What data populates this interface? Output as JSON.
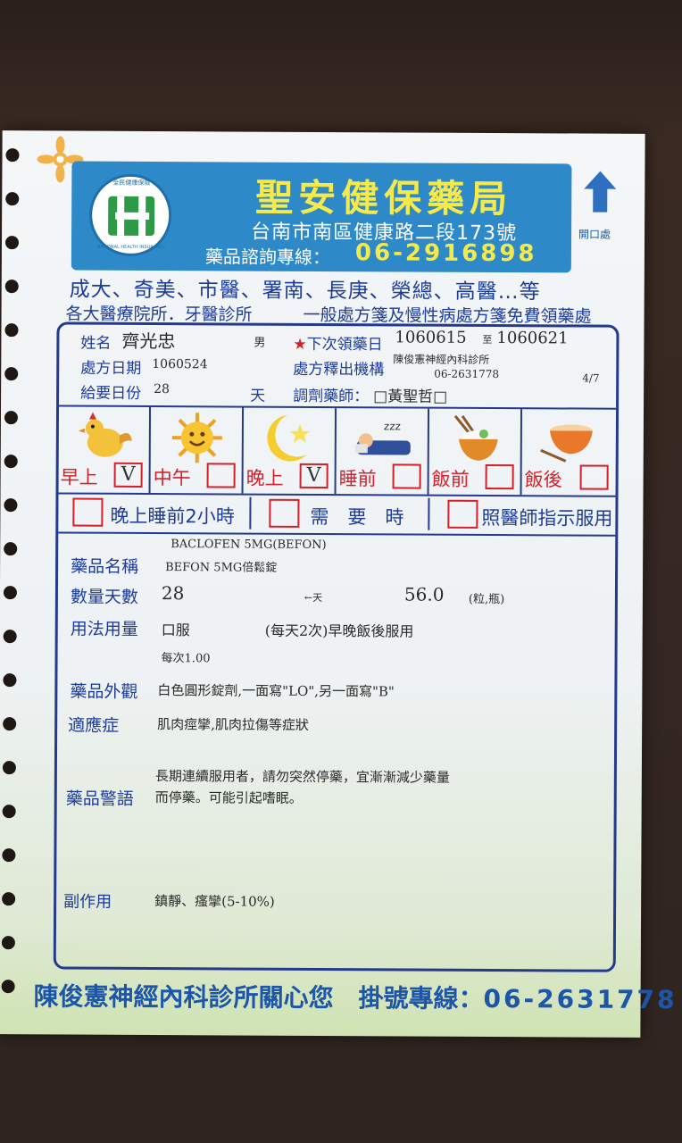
{
  "pharmacy": {
    "name": "聖安健保藥局",
    "address": "台南市南區健康路二段173號",
    "phone_label": "藥品諮詢專線：",
    "phone": "06-2916898",
    "logo_text_top": "全民健康保險",
    "logo_text_bottom": "NATIONAL HEALTH INSURANCE",
    "open_label": "開口處"
  },
  "hospitals_line": "成大、奇美、市醫、署南、長庚、榮總、高醫…等",
  "clinics_line": "各大醫療院所．牙醫診所",
  "free_note": "一般處方箋及慢性病處方箋免費領藥處",
  "patient": {
    "name_label": "姓名",
    "name": "齊光忠",
    "sex": "男",
    "next_pickup_label": "下次領藥日",
    "next_pickup_from": "1060615",
    "to": "至",
    "next_pickup_to": "1060621",
    "rx_date_label": "處方日期",
    "rx_date": "1060524",
    "issuer_label": "處方釋出機構",
    "issuer": "陳俊憲神經內科診所",
    "issuer_phone": "06-2631778",
    "page": "4/7",
    "days_label": "給要日份",
    "days": "28",
    "day_unit": "天",
    "pharmacist_label": "調劑藥師：",
    "pharmacist": "黃聖哲"
  },
  "timing": [
    {
      "label": "早上",
      "mark": "V",
      "icon": "rooster-icon"
    },
    {
      "label": "中午",
      "mark": "",
      "icon": "sun-icon"
    },
    {
      "label": "晚上",
      "mark": "V",
      "icon": "moon-icon"
    },
    {
      "label": "睡前",
      "mark": "",
      "icon": "sleeping-icon"
    },
    {
      "label": "飯前",
      "mark": "",
      "icon": "rice-bowl-icon"
    },
    {
      "label": "飯後",
      "mark": "",
      "icon": "empty-bowl-icon"
    }
  ],
  "special": [
    {
      "label": "晚上睡前2小時"
    },
    {
      "label": "需　要　時"
    },
    {
      "label": "照醫師指示服用"
    }
  ],
  "drug": {
    "generic": "BACLOFEN 5MG(BEFON)",
    "name_label": "藥品名稱",
    "name": "BEFON 5MG倍鬆錠",
    "qty_label": "數量天數",
    "qty_days": "28",
    "qty_day_unit": "←天",
    "qty": "56.0",
    "qty_unit": "(粒,瓶)",
    "usage_label": "用法用量",
    "route": "口服",
    "usage": "(每天2次)早晚飯後服用",
    "dose": "每次1.00",
    "appearance_label": "藥品外觀",
    "appearance": "白色圓形錠劑,一面寫\"LO\",另一面寫\"B\"",
    "indication_label": "適應症",
    "indication": "肌肉痙攣,肌肉拉傷等症狀",
    "warning_label": "藥品警語",
    "warning_line1": "長期連續服用者，請勿突然停藥，宜漸漸減少藥量",
    "warning_line2": "而停藥。可能引起嗜眠。",
    "side_effect_label": "副作用",
    "side_effect": "鎮靜、瘙攣(5-10%)"
  },
  "footer": {
    "text": "陳俊憲神經內科診所關心您　掛號專線：",
    "phone": "06-2631778"
  },
  "colors": {
    "banner": "#2e89c9",
    "label_blue": "#1d3c9a",
    "red": "#d4202a",
    "yellow": "#f6e94a"
  }
}
